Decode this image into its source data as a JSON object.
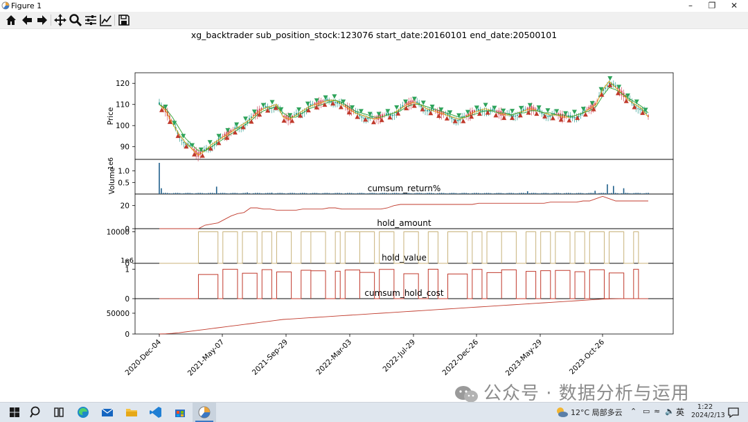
{
  "window": {
    "title": "Figure 1"
  },
  "toolbar": {
    "buttons": [
      "home-icon",
      "back-arrow-icon",
      "forward-arrow-icon",
      "pan-move-icon",
      "zoom-magnifier-icon",
      "subplots-config-icon",
      "edit-axis-icon",
      "save-icon"
    ]
  },
  "figure": {
    "title": "xg_backtrader sub_position_stock:123076 start_date:20160101 end_date:20500101"
  },
  "chart_data": [
    {
      "type": "line",
      "panel": "price",
      "ylabel": "Price",
      "yticks": [
        "120",
        "110",
        "100",
        "90"
      ],
      "ylim": [
        84,
        125
      ],
      "series": [
        {
          "values": [
            110,
            107,
            101,
            96,
            92,
            89,
            86,
            88,
            91,
            93,
            95,
            97,
            99,
            101,
            103,
            106,
            108,
            109,
            110,
            104,
            103,
            105,
            107,
            109,
            110,
            111,
            112,
            112,
            110,
            108,
            106,
            105,
            104,
            103,
            104,
            105,
            106,
            108,
            110,
            111,
            110,
            108,
            107,
            106,
            105,
            104,
            103,
            104,
            106,
            107,
            108,
            107,
            106,
            105,
            105,
            106,
            107,
            108,
            107,
            106,
            105,
            105,
            104,
            104,
            105,
            106,
            108,
            110,
            117,
            121,
            118,
            115,
            112,
            110,
            108,
            104
          ]
        },
        {
          "values": [
            110,
            108,
            104,
            99,
            94,
            91,
            88,
            88,
            90,
            92,
            94,
            96,
            98,
            100,
            102,
            105,
            107,
            108,
            109,
            106,
            104,
            104,
            106,
            108,
            109,
            110,
            111,
            112,
            111,
            109,
            107,
            106,
            105,
            104,
            104,
            105,
            106,
            107,
            109,
            110,
            110,
            109,
            108,
            107,
            106,
            105,
            104,
            104,
            105,
            106,
            107,
            107,
            106,
            106,
            105,
            106,
            106,
            107,
            107,
            106,
            106,
            105,
            105,
            104,
            105,
            106,
            107,
            109,
            114,
            118,
            117,
            115,
            113,
            111,
            109,
            106
          ]
        }
      ],
      "buy_markers_count": 60,
      "sell_markers_count": 55
    },
    {
      "type": "bar",
      "panel": "volume",
      "ylabel": "Volume",
      "offset_label": "1e6",
      "yticks": [
        "1.0",
        "0.5"
      ],
      "ylim": [
        0,
        1.5
      ]
    },
    {
      "type": "line",
      "panel": "cumsum_return%",
      "title": "cumsum_return%",
      "yticks": [
        "20",
        "0"
      ],
      "ylim": [
        0,
        30
      ],
      "values": [
        0,
        0,
        0,
        0,
        0,
        0,
        0,
        3,
        4,
        5,
        8,
        11,
        13,
        14,
        18,
        18,
        17,
        17,
        16,
        16,
        16,
        16,
        17,
        17,
        17,
        17,
        18,
        18,
        17,
        17,
        17,
        17,
        17,
        17,
        17,
        18,
        20,
        21,
        21,
        21,
        21,
        21,
        21,
        21,
        21,
        21,
        21,
        21,
        21,
        22,
        22,
        22,
        22,
        22,
        22,
        22,
        22,
        22,
        22,
        22,
        23,
        23,
        23,
        23,
        23,
        24,
        24,
        26,
        28,
        26,
        24,
        24,
        24,
        24,
        24,
        24
      ]
    },
    {
      "type": "line",
      "panel": "hold_amount",
      "title": "hold_amount",
      "yticks": [
        "10000",
        "0"
      ],
      "ylim": [
        0,
        11000
      ]
    },
    {
      "type": "line",
      "panel": "hold_value",
      "title": "hold_value",
      "offset_label": "1e6",
      "yticks": [
        "1",
        "0"
      ],
      "ylim": [
        0,
        1.2
      ]
    },
    {
      "type": "line",
      "panel": "cumsum_hold_cost",
      "title": "cumsum_hold_cost",
      "yticks": [
        "50000",
        "0"
      ],
      "ylim": [
        0,
        85000
      ],
      "values": [
        0,
        500,
        1500,
        3000,
        5000,
        7000,
        9000,
        11000,
        13000,
        15000,
        17000,
        19000,
        21000,
        23000,
        25000,
        27000,
        29000,
        31000,
        33000,
        35000,
        36000,
        37000,
        38000,
        39000,
        40000,
        41000,
        42000,
        43000,
        44000,
        45000,
        46000,
        47000,
        48000,
        49000,
        50000,
        51000,
        52000,
        53000,
        54000,
        55000,
        56000,
        57000,
        58000,
        59000,
        60000,
        61000,
        62000,
        63000,
        64000,
        65000,
        66000,
        67000,
        68000,
        69000,
        70000,
        71000,
        72000,
        73000,
        74000,
        75000,
        76000,
        77000,
        78000,
        79000,
        80000,
        81000,
        82000,
        83000,
        84000,
        84500,
        84800,
        85000,
        85000,
        85000,
        85000,
        85000
      ]
    }
  ],
  "xaxis": {
    "ticks": [
      "2020-Dec-04",
      "2021-May-07",
      "2021-Sep-29",
      "2022-Mar-03",
      "2022-Jul-29",
      "2022-Dec-26",
      "2023-May-29",
      "2023-Oct-26"
    ]
  },
  "watermark": {
    "text": "公众号 · 数据分析与运用"
  },
  "taskbar": {
    "weather": "12°C 局部多云",
    "ime": "英",
    "time": "1:22",
    "date": "2024/2/13"
  }
}
